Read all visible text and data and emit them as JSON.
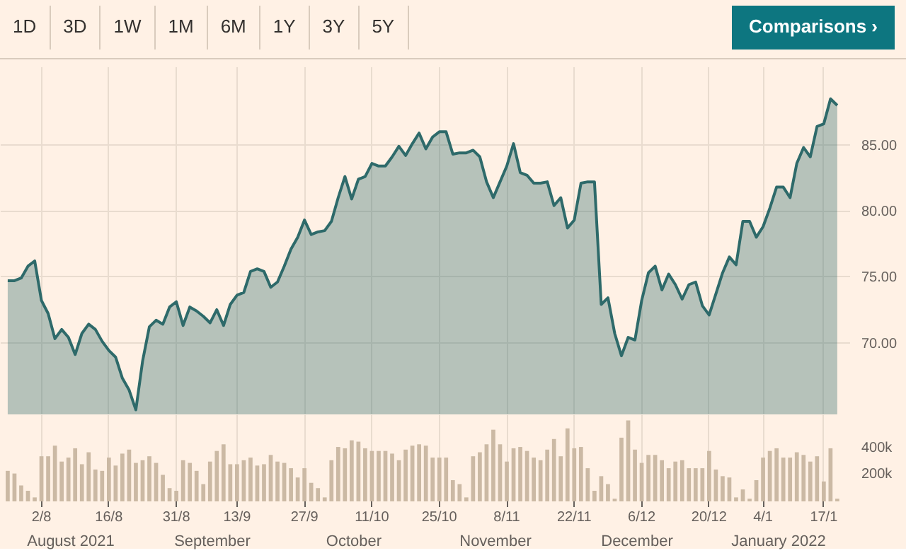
{
  "chart_data": [
    {
      "type": "area",
      "annotations": [
        "1D",
        "3D",
        "1W",
        "1M",
        "6M",
        "1Y",
        "3Y",
        "5Y",
        "Comparisons ›"
      ],
      "categories": [
        null,
        null,
        null,
        null,
        null,
        null,
        null,
        null,
        null,
        null,
        null,
        null,
        null,
        null,
        null,
        null,
        null,
        null,
        null,
        null,
        null,
        null,
        null,
        null,
        null,
        null,
        null,
        null,
        null,
        null,
        null,
        null,
        null,
        null,
        null,
        null,
        null,
        null,
        null,
        null,
        null,
        null,
        null,
        null,
        null,
        null,
        null,
        null,
        null,
        null,
        null,
        null,
        null,
        null,
        null,
        null,
        null,
        null,
        null,
        null,
        null,
        null,
        null,
        null,
        null,
        null,
        null,
        null,
        null,
        null,
        null,
        null,
        null,
        null,
        null,
        null,
        null,
        null,
        null,
        null,
        null,
        null,
        null,
        null,
        null,
        null,
        null,
        null,
        null,
        null,
        null,
        null,
        null,
        null,
        null,
        null,
        null,
        null,
        null,
        null,
        null,
        null,
        null,
        null,
        null,
        null,
        null,
        null,
        null,
        null,
        null,
        null,
        null,
        null,
        null,
        null,
        null,
        null,
        null,
        null,
        null,
        null,
        null,
        null
      ],
      "series": [
        {
          "color": "#2e6a6a",
          "values": [
            74.7,
            74.7,
            74.9,
            75.8,
            76.2,
            73.2,
            72.2,
            70.3,
            71.0,
            70.4,
            69.1,
            70.7,
            71.4,
            71.0,
            70.1,
            69.4,
            68.9,
            67.3,
            66.4,
            64.9,
            68.6,
            71.2,
            71.7,
            71.4,
            72.7,
            73.1,
            71.3,
            72.7,
            72.4,
            72.0,
            71.5,
            72.5,
            71.3,
            72.9,
            73.6,
            73.8,
            75.4,
            75.6,
            75.4,
            74.2,
            74.6,
            75.8,
            77.1,
            78.0,
            79.3,
            78.2,
            78.4,
            78.5,
            79.2,
            81.0,
            82.6,
            80.9,
            82.4,
            82.6,
            83.6,
            83.4,
            83.4,
            84.1,
            84.9,
            84.2,
            85.1,
            85.9,
            84.7,
            85.6,
            86.0,
            86.0,
            84.3,
            84.4,
            84.4,
            84.6,
            84.1,
            82.2,
            81.0,
            82.2,
            83.4,
            85.1,
            82.9,
            82.7,
            82.1,
            82.1,
            82.2,
            80.4,
            81.0,
            78.7,
            79.3,
            82.1,
            82.2,
            82.2,
            72.9,
            73.4,
            70.7,
            69.0,
            70.4,
            70.2,
            73.2,
            75.3,
            75.8,
            74.0,
            75.2,
            74.4,
            73.3,
            74.4,
            74.6,
            72.8,
            72.1,
            73.7,
            75.3,
            76.5,
            75.9,
            79.2,
            79.2,
            78.0,
            78.8,
            80.2,
            81.8,
            81.8,
            81.0,
            83.6,
            84.8,
            84.1,
            86.4,
            86.6,
            88.5,
            88.0
          ]
        }
      ],
      "ylim": [
        64.5,
        90.9
      ],
      "yticks": [
        {
          "value": 70,
          "label": "70.00"
        },
        {
          "value": 75,
          "label": "75.00"
        },
        {
          "value": 80,
          "label": "80.00"
        },
        {
          "value": 85,
          "label": "85.00"
        }
      ],
      "tick_labels": "y",
      "grid": true
    },
    {
      "type": "bar",
      "annotations": [
        "August 2021",
        "September",
        "October",
        "November",
        "December",
        "January 2022"
      ],
      "categories": [
        null,
        null,
        null,
        null,
        null,
        "2/8",
        null,
        null,
        null,
        null,
        null,
        null,
        null,
        null,
        null,
        "16/8",
        null,
        null,
        null,
        null,
        null,
        null,
        null,
        null,
        null,
        "31/8",
        null,
        null,
        null,
        null,
        null,
        null,
        null,
        null,
        "13/9",
        null,
        null,
        null,
        null,
        null,
        null,
        null,
        null,
        null,
        "27/9",
        null,
        null,
        null,
        null,
        null,
        null,
        null,
        null,
        null,
        "11/10",
        null,
        null,
        null,
        null,
        null,
        null,
        null,
        null,
        null,
        "25/10",
        null,
        null,
        null,
        null,
        null,
        null,
        null,
        null,
        null,
        "8/11",
        null,
        null,
        null,
        null,
        null,
        null,
        null,
        null,
        null,
        "22/11",
        null,
        null,
        null,
        null,
        null,
        null,
        null,
        null,
        null,
        "6/12",
        null,
        null,
        null,
        null,
        null,
        null,
        null,
        null,
        null,
        "20/12",
        null,
        null,
        null,
        null,
        null,
        null,
        null,
        "4/1",
        null,
        null,
        null,
        null,
        null,
        null,
        null,
        null,
        "17/1",
        null,
        null
      ],
      "series": [
        {
          "color": "#cbb9a4",
          "values": [
            230000,
            210000,
            120000,
            80000,
            30000,
            340000,
            340000,
            420000,
            300000,
            330000,
            400000,
            280000,
            370000,
            240000,
            230000,
            330000,
            270000,
            360000,
            390000,
            290000,
            310000,
            340000,
            290000,
            200000,
            100000,
            80000,
            310000,
            290000,
            230000,
            130000,
            300000,
            380000,
            430000,
            280000,
            280000,
            310000,
            330000,
            270000,
            280000,
            350000,
            300000,
            290000,
            250000,
            180000,
            250000,
            140000,
            100000,
            30000,
            310000,
            410000,
            400000,
            460000,
            450000,
            400000,
            380000,
            380000,
            380000,
            360000,
            310000,
            390000,
            420000,
            430000,
            420000,
            330000,
            330000,
            330000,
            160000,
            130000,
            30000,
            340000,
            370000,
            430000,
            540000,
            430000,
            300000,
            400000,
            410000,
            380000,
            330000,
            310000,
            390000,
            470000,
            340000,
            550000,
            400000,
            410000,
            250000,
            80000,
            190000,
            130000,
            20000,
            480000,
            610000,
            390000,
            290000,
            350000,
            350000,
            310000,
            250000,
            300000,
            310000,
            250000,
            250000,
            250000,
            380000,
            240000,
            190000,
            180000,
            30000,
            90000,
            20000,
            160000,
            330000,
            380000,
            400000,
            330000,
            330000,
            370000,
            350000,
            300000,
            340000,
            150000,
            400000,
            20000
          ]
        }
      ],
      "ylim": [
        0,
        650000
      ],
      "yticks": [
        {
          "value": 200000,
          "label": "200k"
        },
        {
          "value": 400000,
          "label": "400k"
        }
      ],
      "grid": "x"
    }
  ]
}
